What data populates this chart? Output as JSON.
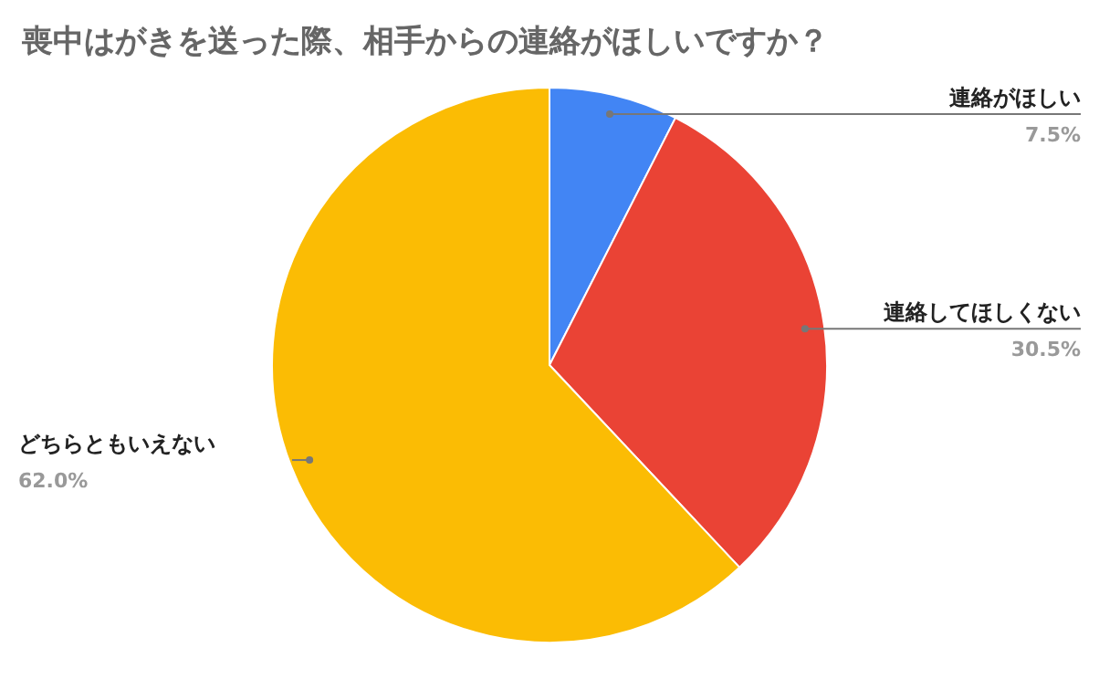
{
  "chart_data": {
    "type": "pie",
    "title": "喪中はがきを送った際、相手からの連絡がほしいですか？",
    "categories": [
      "連絡がほしい",
      "連絡してほしくない",
      "どちらともいえない"
    ],
    "values": [
      7.5,
      30.5,
      62.0
    ],
    "colors": [
      "#4285f4",
      "#ea4335",
      "#fbbc04"
    ],
    "value_labels": [
      "7.5%",
      "30.5%",
      "62.0%"
    ]
  }
}
